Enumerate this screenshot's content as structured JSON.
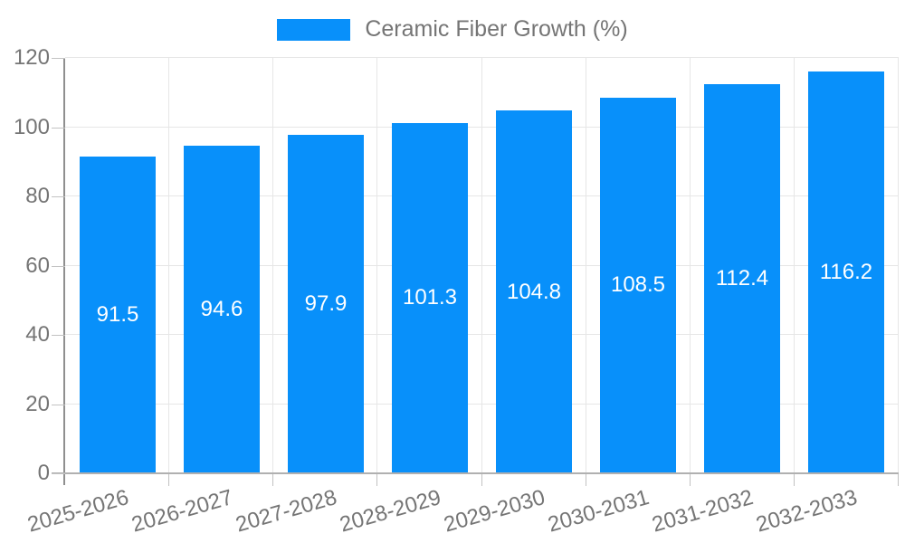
{
  "chart_data": {
    "type": "bar",
    "title": "",
    "legend": "Ceramic Fiber Growth (%)",
    "legend_position": "top",
    "categories": [
      "2025-2026",
      "2026-2027",
      "2027-2028",
      "2028-2029",
      "2029-2030",
      "2030-2031",
      "2031-2032",
      "2032-2033"
    ],
    "series": [
      {
        "name": "Ceramic Fiber Growth (%)",
        "values": [
          91.5,
          94.6,
          97.9,
          101.3,
          104.8,
          108.5,
          112.4,
          116.2
        ]
      }
    ],
    "value_labels": [
      "91.5",
      "94.6",
      "97.9",
      "101.3",
      "104.8",
      "108.5",
      "112.4",
      "116.2"
    ],
    "xlabel": "",
    "ylabel": "",
    "ylim": [
      0,
      120
    ],
    "yticks": [
      0,
      20,
      40,
      60,
      80,
      100,
      120
    ],
    "grid": true,
    "colors": {
      "bar": "#0890fa",
      "bar_label": "#ffffff",
      "axis_text": "#757575",
      "gridline": "#e6e6e6",
      "y_axis_line": "#8f8f8f",
      "x_axis_line": "#b0b0b0",
      "background": "#ffffff"
    }
  }
}
